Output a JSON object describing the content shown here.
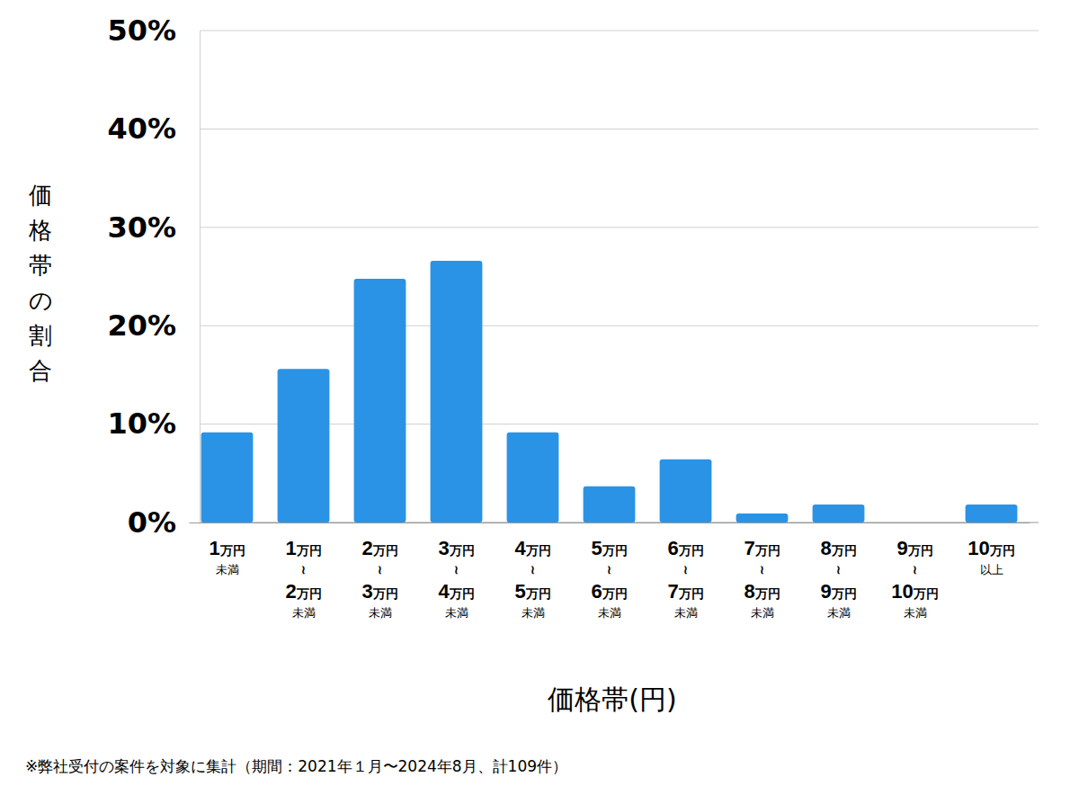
{
  "chart_data": {
    "type": "bar",
    "x_label": "価格帯(円)",
    "y_label": "価格帯の割合",
    "footnote": "※弊社受付の案件を対象に集計（期間：2021年１月〜2024年8月、計109件）",
    "categories": [
      "1万円\n未満",
      "1万円\n≀\n2万円\n未満",
      "2万円\n≀\n3万円\n未満",
      "3万円\n≀\n4万円\n未満",
      "4万円\n≀\n5万円\n未満",
      "5万円\n≀\n6万円\n未満",
      "6万円\n≀\n7万円\n未満",
      "7万円\n≀\n8万円\n未満",
      "8万円\n≀\n9万円\n未満",
      "9万円\n≀\n10万円\n未満",
      "10万円\n以上"
    ],
    "values": [
      9.17,
      15.6,
      24.77,
      26.61,
      9.17,
      3.67,
      6.42,
      0.92,
      1.83,
      0,
      1.83
    ],
    "color": "#2a93e6",
    "ylim": [
      0,
      50
    ],
    "yticks": [
      {
        "value": 0,
        "label": "0%"
      },
      {
        "value": 10,
        "label": "10%"
      },
      {
        "value": 20,
        "label": "20%"
      },
      {
        "value": 30,
        "label": "30%"
      },
      {
        "value": 40,
        "label": "40%"
      },
      {
        "value": 50,
        "label": "50%"
      }
    ],
    "grid": true
  }
}
